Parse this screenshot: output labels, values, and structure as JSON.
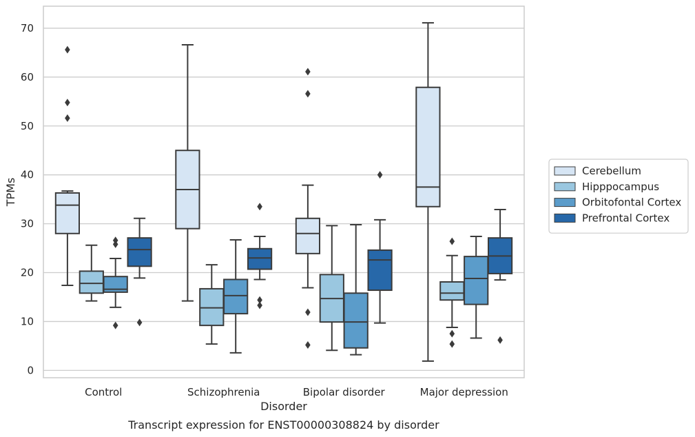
{
  "chart_data": {
    "type": "box",
    "caption": "Transcript expression for ENST00000308824 by disorder",
    "xlabel": "Disorder",
    "ylabel": "TPMs",
    "ylim": [
      -1.5,
      74.5
    ],
    "yticks": [
      0,
      10,
      20,
      30,
      40,
      50,
      60,
      70
    ],
    "grid": true,
    "legend_position": "right",
    "categories": [
      "Control",
      "Schizophrenia",
      "Bipolar disorder",
      "Major depression"
    ],
    "series": [
      {
        "name": "Cerebellum",
        "color": "#d6e5f4",
        "boxes": [
          {
            "whislo": 17.4,
            "q1": 28.0,
            "med": 33.8,
            "q3": 36.3,
            "whishi": 36.7,
            "fliers": [
              51.6,
              54.8,
              65.6
            ]
          },
          {
            "whislo": 14.2,
            "q1": 29.0,
            "med": 37.0,
            "q3": 45.0,
            "whishi": 66.6,
            "fliers": []
          },
          {
            "whislo": 16.9,
            "q1": 23.9,
            "med": 28.0,
            "q3": 31.1,
            "whishi": 37.9,
            "fliers": [
              5.2,
              11.9,
              56.6,
              61.1
            ]
          },
          {
            "whislo": 1.9,
            "q1": 33.5,
            "med": 37.5,
            "q3": 57.9,
            "whishi": 71.1,
            "fliers": []
          }
        ]
      },
      {
        "name": "Hipppocampus",
        "color": "#9ac7e0",
        "boxes": [
          {
            "whislo": 14.2,
            "q1": 15.8,
            "med": 17.8,
            "q3": 20.3,
            "whishi": 25.6,
            "fliers": []
          },
          {
            "whislo": 5.4,
            "q1": 9.2,
            "med": 12.8,
            "q3": 16.7,
            "whishi": 21.6,
            "fliers": []
          },
          {
            "whislo": 4.1,
            "q1": 9.9,
            "med": 14.7,
            "q3": 19.6,
            "whishi": 29.6,
            "fliers": []
          },
          {
            "whislo": 8.8,
            "q1": 14.4,
            "med": 15.8,
            "q3": 18.1,
            "whishi": 23.5,
            "fliers": [
              5.4,
              7.5,
              26.4
            ]
          }
        ]
      },
      {
        "name": "Orbitofontal Cortex",
        "color": "#5b9cca",
        "boxes": [
          {
            "whislo": 12.9,
            "q1": 16.0,
            "med": 16.6,
            "q3": 19.2,
            "whishi": 22.9,
            "fliers": [
              9.2,
              25.8,
              26.6
            ]
          },
          {
            "whislo": 3.6,
            "q1": 11.6,
            "med": 15.3,
            "q3": 18.6,
            "whishi": 26.7,
            "fliers": []
          },
          {
            "whislo": 3.2,
            "q1": 4.6,
            "med": 9.9,
            "q3": 15.8,
            "whishi": 29.8,
            "fliers": []
          },
          {
            "whislo": 6.6,
            "q1": 13.5,
            "med": 18.8,
            "q3": 23.3,
            "whishi": 27.4,
            "fliers": []
          }
        ]
      },
      {
        "name": "Prefrontal Cortex",
        "color": "#2768a9",
        "boxes": [
          {
            "whislo": 18.9,
            "q1": 21.3,
            "med": 24.7,
            "q3": 27.1,
            "whishi": 31.1,
            "fliers": [
              9.8
            ]
          },
          {
            "whislo": 18.6,
            "q1": 20.7,
            "med": 23.0,
            "q3": 24.9,
            "whishi": 27.4,
            "fliers": [
              13.3,
              14.4,
              33.5
            ]
          },
          {
            "whislo": 9.7,
            "q1": 16.4,
            "med": 22.6,
            "q3": 24.6,
            "whishi": 30.8,
            "fliers": [
              40.0
            ]
          },
          {
            "whislo": 18.5,
            "q1": 19.8,
            "med": 23.4,
            "q3": 27.1,
            "whishi": 32.9,
            "fliers": [
              6.2
            ]
          }
        ]
      }
    ]
  },
  "colors": {
    "edge": "#3b3b3b",
    "grid": "#cccccc",
    "frame": "#cccccc",
    "background": "#ffffff"
  }
}
